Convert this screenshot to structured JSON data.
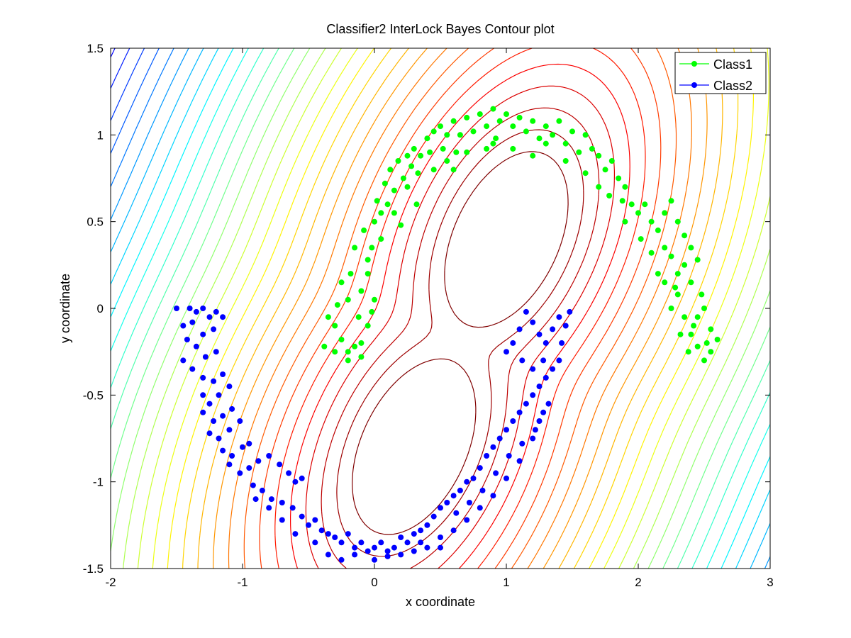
{
  "chart_data": {
    "type": "scatter",
    "title": "Classifier2 InterLock Bayes Contour plot",
    "xlabel": "x coordinate",
    "ylabel": "y coordinate",
    "xlim": [
      -2,
      3
    ],
    "ylim": [
      -1.5,
      1.5
    ],
    "x_ticks": [
      -2,
      -1,
      0,
      1,
      2,
      3
    ],
    "y_ticks": [
      -1.5,
      -1,
      -0.5,
      0,
      0.5,
      1,
      1.5
    ],
    "x_tick_labels": [
      "-2",
      "-1",
      "0",
      "1",
      "2",
      "3"
    ],
    "y_tick_labels": [
      "-1.5",
      "-1",
      "-0.5",
      "0",
      "0.5",
      "1",
      "1.5"
    ],
    "grid": false,
    "legend_position": "top-right",
    "contours": {
      "type": "contour",
      "colormap": "jet",
      "description": "Interlocking double-well likelihood contours; inner levels dark red, outer levels through orange, yellow, cyan to dark blue at the corners",
      "wells": [
        {
          "center": [
            1.0,
            0.4
          ],
          "semi_axes": [
            0.58,
            0.37
          ],
          "angle_deg": 50
        },
        {
          "center": [
            0.3,
            -0.8
          ],
          "semi_axes": [
            0.58,
            0.37
          ],
          "angle_deg": 50
        }
      ]
    },
    "series": [
      {
        "name": "Class1",
        "color": "#00ff00",
        "marker": "circle",
        "points": [
          [
            -0.35,
            -0.05
          ],
          [
            -0.3,
            -0.1
          ],
          [
            -0.25,
            -0.18
          ],
          [
            -0.2,
            -0.25
          ],
          [
            -0.15,
            -0.22
          ],
          [
            -0.1,
            -0.28
          ],
          [
            -0.38,
            -0.22
          ],
          [
            -0.3,
            -0.25
          ],
          [
            -0.2,
            -0.3
          ],
          [
            -0.1,
            -0.2
          ],
          [
            -0.05,
            -0.1
          ],
          [
            -0.12,
            -0.05
          ],
          [
            -0.2,
            0.05
          ],
          [
            -0.28,
            0.02
          ],
          [
            -0.25,
            0.15
          ],
          [
            -0.18,
            0.2
          ],
          [
            -0.1,
            0.1
          ],
          [
            -0.05,
            0.2
          ],
          [
            0.0,
            0.05
          ],
          [
            -0.02,
            -0.02
          ],
          [
            -0.15,
            0.35
          ],
          [
            -0.08,
            0.45
          ],
          [
            -0.02,
            0.35
          ],
          [
            0.0,
            0.5
          ],
          [
            0.05,
            0.55
          ],
          [
            0.1,
            0.6
          ],
          [
            0.02,
            0.62
          ],
          [
            0.08,
            0.72
          ],
          [
            0.15,
            0.68
          ],
          [
            0.12,
            0.8
          ],
          [
            0.18,
            0.85
          ],
          [
            0.22,
            0.75
          ],
          [
            0.25,
            0.88
          ],
          [
            0.28,
            0.82
          ],
          [
            0.3,
            0.92
          ],
          [
            0.35,
            0.88
          ],
          [
            0.33,
            0.78
          ],
          [
            0.4,
            0.98
          ],
          [
            0.45,
            1.02
          ],
          [
            0.42,
            0.9
          ],
          [
            0.5,
            1.05
          ],
          [
            0.55,
            1.0
          ],
          [
            0.52,
            0.92
          ],
          [
            0.6,
            1.08
          ],
          [
            0.65,
            1.0
          ],
          [
            0.62,
            0.9
          ],
          [
            0.7,
            1.1
          ],
          [
            0.75,
            1.02
          ],
          [
            0.8,
            1.12
          ],
          [
            0.85,
            1.05
          ],
          [
            0.9,
            1.15
          ],
          [
            0.95,
            1.08
          ],
          [
            0.92,
            0.98
          ],
          [
            1.0,
            1.12
          ],
          [
            1.05,
            1.05
          ],
          [
            1.1,
            1.1
          ],
          [
            1.15,
            1.02
          ],
          [
            1.2,
            1.08
          ],
          [
            1.25,
            0.98
          ],
          [
            1.3,
            1.05
          ],
          [
            1.35,
            1.0
          ],
          [
            1.4,
            1.08
          ],
          [
            1.45,
            0.95
          ],
          [
            1.5,
            1.02
          ],
          [
            1.55,
            0.9
          ],
          [
            1.6,
            1.0
          ],
          [
            1.65,
            0.92
          ],
          [
            1.7,
            0.88
          ],
          [
            1.75,
            0.8
          ],
          [
            1.8,
            0.85
          ],
          [
            1.85,
            0.75
          ],
          [
            1.9,
            0.7
          ],
          [
            1.88,
            0.62
          ],
          [
            1.95,
            0.6
          ],
          [
            2.0,
            0.55
          ],
          [
            2.05,
            0.6
          ],
          [
            2.1,
            0.5
          ],
          [
            2.15,
            0.45
          ],
          [
            2.2,
            0.55
          ],
          [
            2.25,
            0.62
          ],
          [
            2.3,
            0.5
          ],
          [
            2.35,
            0.42
          ],
          [
            2.4,
            0.35
          ],
          [
            2.25,
            0.3
          ],
          [
            2.2,
            0.35
          ],
          [
            2.3,
            0.2
          ],
          [
            2.35,
            0.25
          ],
          [
            2.45,
            0.28
          ],
          [
            2.4,
            0.15
          ],
          [
            2.3,
            0.08
          ],
          [
            2.25,
            0.0
          ],
          [
            2.35,
            -0.05
          ],
          [
            2.4,
            -0.15
          ],
          [
            2.45,
            -0.05
          ],
          [
            2.5,
            0.0
          ],
          [
            2.55,
            -0.12
          ],
          [
            2.45,
            -0.22
          ],
          [
            2.5,
            -0.3
          ],
          [
            2.55,
            -0.25
          ],
          [
            2.6,
            -0.18
          ],
          [
            2.38,
            -0.25
          ],
          [
            2.42,
            -0.1
          ],
          [
            2.48,
            0.08
          ],
          [
            2.32,
            -0.15
          ],
          [
            2.52,
            -0.2
          ],
          [
            0.6,
            0.8
          ],
          [
            0.7,
            0.9
          ],
          [
            0.9,
            0.95
          ],
          [
            1.05,
            0.92
          ],
          [
            1.3,
            0.95
          ],
          [
            1.45,
            0.85
          ],
          [
            1.6,
            0.78
          ],
          [
            1.7,
            0.7
          ],
          [
            1.78,
            0.65
          ],
          [
            1.2,
            0.88
          ],
          [
            0.85,
            0.92
          ],
          [
            0.55,
            0.85
          ],
          [
            0.45,
            0.8
          ],
          [
            0.25,
            0.7
          ],
          [
            0.15,
            0.55
          ],
          [
            0.05,
            0.4
          ],
          [
            -0.05,
            0.28
          ],
          [
            0.2,
            0.48
          ],
          [
            0.32,
            0.6
          ],
          [
            2.2,
            0.15
          ],
          [
            2.15,
            0.2
          ],
          [
            1.9,
            0.5
          ],
          [
            2.02,
            0.4
          ],
          [
            2.1,
            0.32
          ],
          [
            2.28,
            0.12
          ]
        ]
      },
      {
        "name": "Class2",
        "color": "#0000ff",
        "marker": "circle",
        "points": [
          [
            -1.5,
            0.0
          ],
          [
            -1.4,
            0.0
          ],
          [
            -1.35,
            -0.02
          ],
          [
            -1.3,
            0.0
          ],
          [
            -1.25,
            -0.05
          ],
          [
            -1.2,
            -0.02
          ],
          [
            -1.15,
            -0.05
          ],
          [
            -1.45,
            -0.1
          ],
          [
            -1.38,
            -0.08
          ],
          [
            -1.3,
            -0.15
          ],
          [
            -1.22,
            -0.12
          ],
          [
            -1.42,
            -0.18
          ],
          [
            -1.35,
            -0.22
          ],
          [
            -1.28,
            -0.28
          ],
          [
            -1.2,
            -0.25
          ],
          [
            -1.45,
            -0.3
          ],
          [
            -1.38,
            -0.35
          ],
          [
            -1.3,
            -0.4
          ],
          [
            -1.22,
            -0.42
          ],
          [
            -1.15,
            -0.38
          ],
          [
            -1.3,
            -0.5
          ],
          [
            -1.25,
            -0.55
          ],
          [
            -1.18,
            -0.5
          ],
          [
            -1.1,
            -0.45
          ],
          [
            -1.3,
            -0.6
          ],
          [
            -1.22,
            -0.65
          ],
          [
            -1.15,
            -0.62
          ],
          [
            -1.08,
            -0.58
          ],
          [
            -1.25,
            -0.72
          ],
          [
            -1.18,
            -0.75
          ],
          [
            -1.1,
            -0.7
          ],
          [
            -1.02,
            -0.65
          ],
          [
            -1.15,
            -0.82
          ],
          [
            -1.08,
            -0.85
          ],
          [
            -1.0,
            -0.8
          ],
          [
            -0.95,
            -0.78
          ],
          [
            -1.1,
            -0.9
          ],
          [
            -1.02,
            -0.95
          ],
          [
            -0.95,
            -0.92
          ],
          [
            -0.88,
            -0.88
          ],
          [
            -0.8,
            -0.85
          ],
          [
            -0.72,
            -0.9
          ],
          [
            -0.65,
            -0.95
          ],
          [
            -0.6,
            -1.0
          ],
          [
            -0.55,
            -0.98
          ],
          [
            -0.92,
            -1.02
          ],
          [
            -0.85,
            -1.05
          ],
          [
            -0.78,
            -1.1
          ],
          [
            -0.7,
            -1.12
          ],
          [
            -0.62,
            -1.15
          ],
          [
            -0.55,
            -1.2
          ],
          [
            -0.5,
            -1.25
          ],
          [
            -0.45,
            -1.22
          ],
          [
            -0.4,
            -1.28
          ],
          [
            -0.35,
            -1.3
          ],
          [
            -0.3,
            -1.32
          ],
          [
            -0.25,
            -1.35
          ],
          [
            -0.2,
            -1.3
          ],
          [
            -0.15,
            -1.38
          ],
          [
            -0.1,
            -1.35
          ],
          [
            -0.05,
            -1.4
          ],
          [
            0.0,
            -1.38
          ],
          [
            0.05,
            -1.35
          ],
          [
            0.1,
            -1.4
          ],
          [
            0.15,
            -1.38
          ],
          [
            0.2,
            -1.32
          ],
          [
            0.25,
            -1.35
          ],
          [
            0.3,
            -1.3
          ],
          [
            0.35,
            -1.28
          ],
          [
            0.4,
            -1.25
          ],
          [
            0.45,
            -1.2
          ],
          [
            0.5,
            -1.15
          ],
          [
            0.55,
            -1.12
          ],
          [
            0.6,
            -1.08
          ],
          [
            0.65,
            -1.05
          ],
          [
            0.7,
            -1.0
          ],
          [
            0.75,
            -0.98
          ],
          [
            0.8,
            -0.92
          ],
          [
            0.85,
            -0.85
          ],
          [
            0.9,
            -0.8
          ],
          [
            0.95,
            -0.75
          ],
          [
            1.0,
            -0.7
          ],
          [
            1.05,
            -0.65
          ],
          [
            1.1,
            -0.6
          ],
          [
            1.15,
            -0.55
          ],
          [
            1.2,
            -0.5
          ],
          [
            1.25,
            -0.45
          ],
          [
            1.3,
            -0.4
          ],
          [
            1.35,
            -0.35
          ],
          [
            1.4,
            -0.3
          ],
          [
            1.42,
            -0.2
          ],
          [
            1.45,
            -0.1
          ],
          [
            1.48,
            -0.02
          ],
          [
            1.4,
            -0.05
          ],
          [
            1.35,
            -0.12
          ],
          [
            1.3,
            -0.2
          ],
          [
            1.25,
            -0.15
          ],
          [
            1.2,
            -0.08
          ],
          [
            1.15,
            -0.02
          ],
          [
            1.1,
            -0.12
          ],
          [
            1.05,
            -0.2
          ],
          [
            1.0,
            -0.25
          ],
          [
            1.12,
            -0.3
          ],
          [
            1.2,
            -0.35
          ],
          [
            1.28,
            -0.3
          ],
          [
            0.4,
            -1.38
          ],
          [
            0.5,
            -1.32
          ],
          [
            0.6,
            -1.28
          ],
          [
            0.7,
            -1.22
          ],
          [
            0.8,
            -1.15
          ],
          [
            0.9,
            -1.08
          ],
          [
            1.0,
            -0.98
          ],
          [
            1.1,
            -0.88
          ],
          [
            1.2,
            -0.75
          ],
          [
            1.25,
            -0.65
          ],
          [
            1.32,
            -0.55
          ],
          [
            -0.35,
            -1.42
          ],
          [
            -0.25,
            -1.45
          ],
          [
            -0.15,
            -1.42
          ],
          [
            0.0,
            -1.45
          ],
          [
            0.1,
            -1.43
          ],
          [
            0.3,
            -1.4
          ],
          [
            0.5,
            -1.38
          ],
          [
            -0.45,
            -1.35
          ],
          [
            -0.6,
            -1.3
          ],
          [
            -0.7,
            -1.22
          ],
          [
            -0.8,
            -1.15
          ],
          [
            -0.9,
            -1.1
          ],
          [
            0.2,
            -1.42
          ],
          [
            0.35,
            -1.35
          ],
          [
            0.62,
            -1.18
          ],
          [
            0.72,
            -1.12
          ],
          [
            0.82,
            -1.05
          ],
          [
            0.92,
            -0.95
          ],
          [
            1.02,
            -0.85
          ],
          [
            1.12,
            -0.78
          ],
          [
            1.22,
            -0.7
          ],
          [
            1.28,
            -0.6
          ]
        ]
      }
    ]
  }
}
